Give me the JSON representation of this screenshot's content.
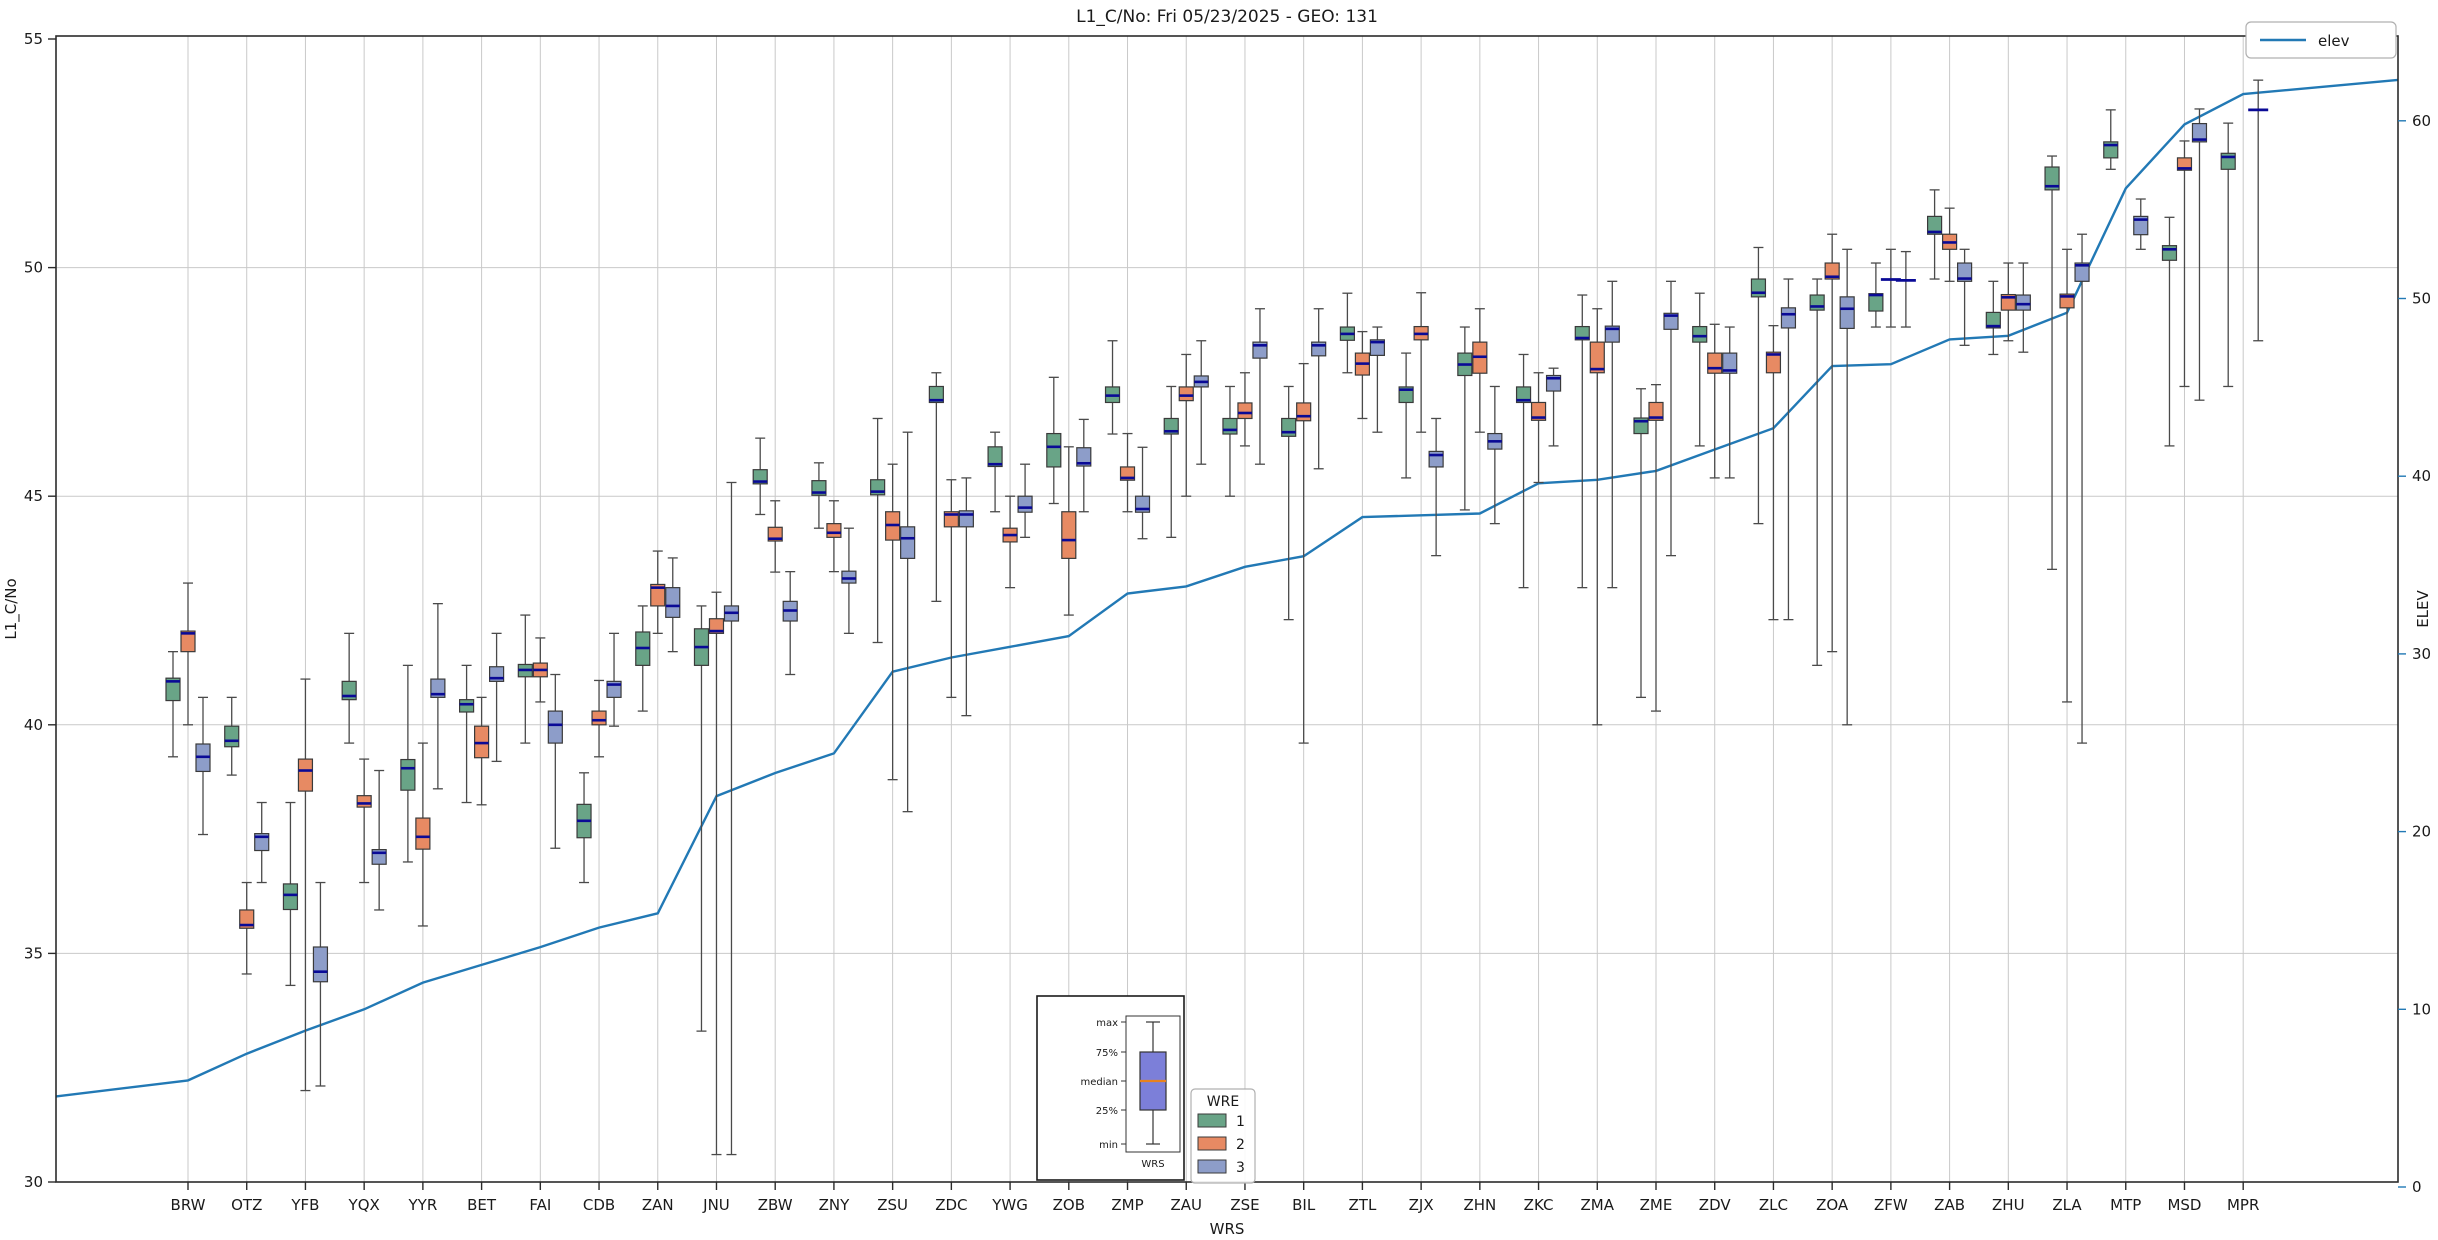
{
  "title": "L1_C/No: Fri 05/23/2025 - GEO: 131",
  "axes": {
    "left": {
      "label": "L1_C/No",
      "ticks": [
        30,
        35,
        40,
        45,
        50,
        55
      ]
    },
    "right": {
      "label": "ELEV",
      "ticks": [
        0,
        10,
        20,
        30,
        40,
        50,
        60
      ],
      "color": "#2279b5"
    },
    "x": {
      "label": "WRS"
    }
  },
  "legend_elev": {
    "label": "elev"
  },
  "legend_wre": {
    "title": "WRE",
    "entries": [
      {
        "label": "1",
        "color": "#69a487"
      },
      {
        "label": "2",
        "color": "#e78a63"
      },
      {
        "label": "3",
        "color": "#8d9dc9"
      }
    ]
  },
  "inset": {
    "labels": [
      "max",
      "75%",
      "median",
      "25%",
      "min"
    ],
    "xlabel": "WRS",
    "box_color": "#7c7fd9",
    "median_color": "#e8821e"
  },
  "colors": {
    "wre1": "#69a487",
    "wre2": "#e78a63",
    "wre3": "#8d9dc9",
    "median": "#0a0a96",
    "elev_line": "#2279b5",
    "grid": "#c9c9c9",
    "spine": "#2b2b2b",
    "whisker": "#4a4a4a"
  },
  "chart_data": {
    "type": "bar",
    "subtype": "grouped-boxplot-with-line",
    "title": "L1_C/No: Fri 05/23/2025 - GEO: 131",
    "xlabel": "WRS",
    "ylabel_left": "L1_C/No",
    "ylabel_right": "ELEV",
    "ylim_left": [
      30,
      55
    ],
    "ylim_right": [
      -0.3,
      64.2
    ],
    "grid": true,
    "legend_position": "upper-right",
    "box_values_order": [
      "whisker_low",
      "q1",
      "median",
      "q3",
      "whisker_high"
    ],
    "elev_edge_start": 5.1,
    "elev_edge_end": 62.3,
    "stations": [
      {
        "id": "BRW",
        "elev": 6.0,
        "wre1": [
          39.3,
          40.53,
          40.95,
          41.02,
          41.6
        ],
        "wre2": [
          40.0,
          41.6,
          42.0,
          42.05,
          43.1
        ],
        "wre3": [
          37.6,
          38.98,
          39.3,
          39.58,
          40.6
        ]
      },
      {
        "id": "OTZ",
        "elev": 7.5,
        "wre1": [
          38.9,
          39.52,
          39.65,
          39.97,
          40.6
        ],
        "wre2": [
          34.55,
          35.55,
          35.62,
          35.95,
          36.55
        ],
        "wre3": [
          36.55,
          37.25,
          37.55,
          37.62,
          38.3
        ]
      },
      {
        "id": "YFB",
        "elev": 8.8,
        "wre1": [
          34.3,
          35.96,
          36.28,
          36.52,
          38.3
        ],
        "wre2": [
          32.0,
          38.55,
          39.0,
          39.25,
          41.0
        ],
        "wre3": [
          32.1,
          34.38,
          34.6,
          35.14,
          36.55
        ]
      },
      {
        "id": "YQX",
        "elev": 10.0,
        "wre1": [
          39.6,
          40.55,
          40.63,
          40.95,
          42.0
        ],
        "wre2": [
          36.55,
          38.2,
          38.28,
          38.45,
          39.25
        ],
        "wre3": [
          35.95,
          36.95,
          37.2,
          37.27,
          39.0
        ]
      },
      {
        "id": "YYR",
        "elev": 11.5,
        "wre1": [
          37.0,
          38.57,
          39.05,
          39.24,
          41.3
        ],
        "wre2": [
          35.6,
          37.28,
          37.55,
          37.96,
          39.6
        ],
        "wre3": [
          38.6,
          40.6,
          40.67,
          41.0,
          42.65
        ]
      },
      {
        "id": "BET",
        "elev": 12.5,
        "wre1": [
          38.3,
          40.28,
          40.45,
          40.55,
          41.3
        ],
        "wre2": [
          38.25,
          39.28,
          39.6,
          39.97,
          40.6
        ],
        "wre3": [
          39.2,
          40.95,
          41.02,
          41.27,
          42.0
        ]
      },
      {
        "id": "FAI",
        "elev": 13.5,
        "wre1": [
          39.6,
          41.05,
          41.2,
          41.32,
          42.4
        ],
        "wre2": [
          40.5,
          41.05,
          41.2,
          41.35,
          41.9
        ],
        "wre3": [
          37.3,
          39.6,
          40.0,
          40.3,
          41.1
        ]
      },
      {
        "id": "CDB",
        "elev": 14.6,
        "wre1": [
          36.55,
          37.53,
          37.9,
          38.26,
          38.95
        ],
        "wre2": [
          39.3,
          40.0,
          40.1,
          40.3,
          40.97
        ],
        "wre3": [
          39.97,
          40.6,
          40.88,
          40.95,
          42.0
        ]
      },
      {
        "id": "ZAN",
        "elev": 15.4,
        "wre1": [
          40.3,
          41.3,
          41.68,
          42.03,
          42.6
        ],
        "wre2": [
          42.0,
          42.6,
          43.0,
          43.07,
          43.8
        ],
        "wre3": [
          41.6,
          42.35,
          42.6,
          43.0,
          43.65
        ]
      },
      {
        "id": "JNU",
        "elev": 22.0,
        "wre1": [
          33.3,
          41.3,
          41.7,
          42.1,
          42.6
        ],
        "wre2": [
          30.6,
          42.0,
          42.05,
          42.32,
          42.9
        ],
        "wre3": [
          30.6,
          42.27,
          42.45,
          42.6,
          45.3
        ]
      },
      {
        "id": "ZBW",
        "elev": 23.3,
        "wre1": [
          44.6,
          45.27,
          45.32,
          45.58,
          46.27
        ],
        "wre2": [
          43.34,
          44.02,
          44.07,
          44.32,
          44.9
        ],
        "wre3": [
          41.1,
          42.27,
          42.5,
          42.7,
          43.35
        ]
      },
      {
        "id": "ZNY",
        "elev": 24.4,
        "wre1": [
          44.3,
          45.02,
          45.08,
          45.34,
          45.73
        ],
        "wre2": [
          43.35,
          44.1,
          44.2,
          44.4,
          44.9
        ],
        "wre3": [
          42.0,
          43.1,
          43.2,
          43.36,
          44.3
        ]
      },
      {
        "id": "ZSU",
        "elev": 29.0,
        "wre1": [
          41.8,
          45.03,
          45.1,
          45.36,
          46.7
        ],
        "wre2": [
          38.8,
          44.04,
          44.37,
          44.66,
          45.7
        ],
        "wre3": [
          38.1,
          43.64,
          44.08,
          44.33,
          46.4
        ]
      },
      {
        "id": "ZDC",
        "elev": 29.8,
        "wre1": [
          42.7,
          47.05,
          47.1,
          47.4,
          47.7
        ],
        "wre2": [
          40.6,
          44.33,
          44.6,
          44.66,
          45.36
        ],
        "wre3": [
          40.2,
          44.33,
          44.6,
          44.68,
          45.4
        ]
      },
      {
        "id": "YWG",
        "elev": 30.4,
        "wre1": [
          44.66,
          45.65,
          45.7,
          46.08,
          46.4
        ],
        "wre2": [
          43.0,
          44.0,
          44.15,
          44.3,
          45.0
        ],
        "wre3": [
          44.1,
          44.65,
          44.75,
          45.0,
          45.7
        ]
      },
      {
        "id": "ZOB",
        "elev": 31.0,
        "wre1": [
          44.84,
          45.64,
          46.08,
          46.37,
          47.6
        ],
        "wre2": [
          42.4,
          43.64,
          44.04,
          44.66,
          46.08
        ],
        "wre3": [
          44.66,
          45.66,
          45.72,
          46.06,
          46.68
        ]
      },
      {
        "id": "ZMP",
        "elev": 33.4,
        "wre1": [
          46.36,
          47.05,
          47.2,
          47.39,
          48.4
        ],
        "wre2": [
          44.66,
          45.35,
          45.4,
          45.64,
          46.37
        ],
        "wre3": [
          44.07,
          44.65,
          44.72,
          45.0,
          46.07
        ]
      },
      {
        "id": "ZAU",
        "elev": 33.8,
        "wre1": [
          44.1,
          46.36,
          46.42,
          46.7,
          47.4
        ],
        "wre2": [
          45.0,
          47.09,
          47.2,
          47.39,
          48.1
        ],
        "wre3": [
          45.7,
          47.39,
          47.5,
          47.63,
          48.4
        ]
      },
      {
        "id": "ZSE",
        "elev": 34.9,
        "wre1": [
          45.0,
          46.36,
          46.45,
          46.7,
          47.4
        ],
        "wre2": [
          46.1,
          46.7,
          46.82,
          47.04,
          47.7
        ],
        "wre3": [
          45.7,
          48.02,
          48.3,
          48.37,
          49.1
        ]
      },
      {
        "id": "BIL",
        "elev": 35.5,
        "wre1": [
          42.3,
          46.31,
          46.4,
          46.7,
          47.4
        ],
        "wre2": [
          39.6,
          46.65,
          46.75,
          47.04,
          47.9
        ],
        "wre3": [
          45.6,
          48.07,
          48.3,
          48.37,
          49.1
        ]
      },
      {
        "id": "ZTL",
        "elev": 37.7,
        "wre1": [
          47.7,
          48.41,
          48.55,
          48.7,
          49.44
        ],
        "wre2": [
          46.7,
          47.65,
          47.9,
          48.13,
          48.6
        ],
        "wre3": [
          46.4,
          48.08,
          48.37,
          48.42,
          48.7
        ]
      },
      {
        "id": "ZJX",
        "elev": 37.8,
        "wre1": [
          45.4,
          47.05,
          47.33,
          47.39,
          48.13
        ],
        "wre2": [
          46.4,
          48.42,
          48.55,
          48.71,
          49.45
        ],
        "wre3": [
          43.7,
          45.64,
          45.9,
          45.98,
          46.7
        ]
      },
      {
        "id": "ZHN",
        "elev": 37.9,
        "wre1": [
          44.7,
          47.64,
          47.88,
          48.13,
          48.7
        ],
        "wre2": [
          46.4,
          47.69,
          48.05,
          48.37,
          49.1
        ],
        "wre3": [
          44.4,
          46.03,
          46.2,
          46.37,
          47.4
        ]
      },
      {
        "id": "ZKC",
        "elev": 39.6,
        "wre1": [
          43.0,
          47.05,
          47.1,
          47.39,
          48.1
        ],
        "wre2": [
          45.3,
          46.66,
          46.72,
          47.05,
          47.7
        ],
        "wre3": [
          46.1,
          47.3,
          47.58,
          47.64,
          47.8
        ]
      },
      {
        "id": "ZMA",
        "elev": 39.8,
        "wre1": [
          43.0,
          48.42,
          48.46,
          48.71,
          49.4
        ],
        "wre2": [
          40.0,
          47.7,
          47.78,
          48.37,
          49.1
        ],
        "wre3": [
          43.0,
          48.37,
          48.66,
          48.72,
          49.7
        ]
      },
      {
        "id": "ZME",
        "elev": 40.3,
        "wre1": [
          40.6,
          46.37,
          46.64,
          46.71,
          47.35
        ],
        "wre2": [
          40.3,
          46.66,
          46.72,
          47.05,
          47.44
        ],
        "wre3": [
          43.7,
          48.65,
          48.95,
          49.0,
          49.7
        ]
      },
      {
        "id": "ZDV",
        "elev": 41.5,
        "wre1": [
          46.1,
          48.37,
          48.5,
          48.71,
          49.44
        ],
        "wre2": [
          45.4,
          47.69,
          47.8,
          48.13,
          48.76
        ],
        "wre3": [
          45.4,
          47.69,
          47.75,
          48.13,
          48.7
        ]
      },
      {
        "id": "ZLC",
        "elev": 42.7,
        "wre1": [
          44.4,
          49.36,
          49.45,
          49.75,
          50.44
        ],
        "wre2": [
          42.3,
          47.7,
          48.1,
          48.15,
          48.73
        ],
        "wre3": [
          42.3,
          48.68,
          48.98,
          49.12,
          49.75
        ]
      },
      {
        "id": "ZOA",
        "elev": 46.2,
        "wre1": [
          41.3,
          49.07,
          49.15,
          49.4,
          49.75
        ],
        "wre2": [
          41.6,
          49.75,
          49.8,
          50.1,
          50.73
        ],
        "wre3": [
          40.0,
          48.67,
          49.1,
          49.36,
          50.4
        ]
      },
      {
        "id": "ZFW",
        "elev": 46.3,
        "wre1": [
          48.7,
          49.05,
          49.4,
          49.43,
          50.1
        ],
        "wre2": [
          48.7,
          49.74,
          49.74,
          49.74,
          50.4
        ],
        "wre3": [
          48.7,
          49.72,
          49.72,
          49.72,
          50.35
        ]
      },
      {
        "id": "ZAB",
        "elev": 47.7,
        "wre1": [
          49.75,
          50.73,
          50.78,
          51.12,
          51.7
        ],
        "wre2": [
          49.7,
          50.4,
          50.55,
          50.73,
          51.3
        ],
        "wre3": [
          48.3,
          49.7,
          49.76,
          50.1,
          50.4
        ]
      },
      {
        "id": "ZHU",
        "elev": 47.9,
        "wre1": [
          48.1,
          48.68,
          48.72,
          49.02,
          49.7
        ],
        "wre2": [
          48.4,
          49.07,
          49.35,
          49.41,
          50.1
        ],
        "wre3": [
          48.15,
          49.07,
          49.2,
          49.4,
          50.1
        ]
      },
      {
        "id": "ZLA",
        "elev": 49.2,
        "wre1": [
          43.4,
          51.7,
          51.78,
          52.2,
          52.44
        ],
        "wre2": [
          40.5,
          49.12,
          49.37,
          49.42,
          50.4
        ],
        "wre3": [
          39.6,
          49.7,
          50.05,
          50.1,
          50.73
        ]
      },
      {
        "id": "MTP",
        "elev": 56.2,
        "wre1": [
          52.15,
          52.4,
          52.68,
          52.75,
          53.45
        ],
        "wre2": null,
        "wre3": [
          50.4,
          50.72,
          51.05,
          51.12,
          51.5
        ]
      },
      {
        "id": "MSD",
        "elev": 59.8,
        "wre1": [
          46.1,
          50.16,
          50.4,
          50.48,
          51.1
        ],
        "wre2": [
          47.4,
          52.13,
          52.17,
          52.4,
          52.77
        ],
        "wre3": [
          47.1,
          52.75,
          52.8,
          53.15,
          53.47
        ]
      },
      {
        "id": "MPR",
        "elev": 61.5,
        "wre1": [
          47.4,
          52.15,
          52.42,
          52.5,
          53.16
        ],
        "wre2": null,
        "wre3": [
          48.4,
          53.45,
          53.45,
          53.45,
          54.1
        ]
      }
    ]
  }
}
